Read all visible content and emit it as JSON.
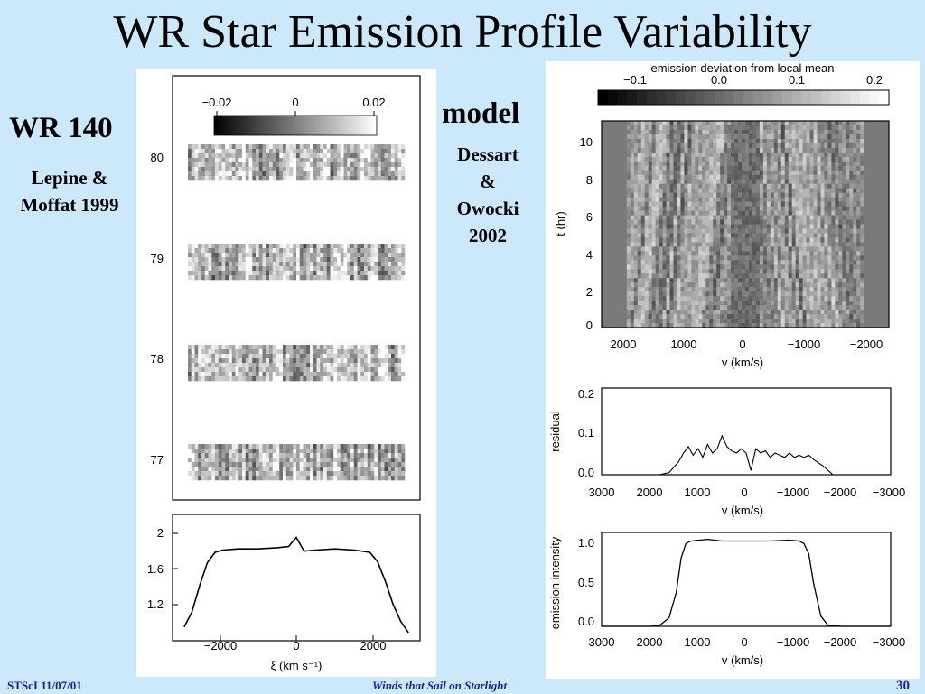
{
  "slide": {
    "title": "WR Star Emission Profile Variability",
    "obs_name": "WR 140",
    "obs_ref_line1": "Lepine &",
    "obs_ref_line2": "Moffat 1999",
    "model_name": "model",
    "model_ref_line1": "Dessart",
    "model_ref_line2": "&",
    "model_ref_line3": "Owocki",
    "model_ref_line4": "2002",
    "footer_left": "STScI 11/07/01",
    "footer_center": "Winds that Sail on Starlight",
    "footer_right": "30"
  },
  "chart_data": [
    {
      "type": "heatmap",
      "colorbar_ticks": [
        "−0.02",
        "0",
        "0.02"
      ],
      "colorbar_range": [
        -0.025,
        0.025
      ],
      "y_ticks": [
        "80",
        "79",
        "78",
        "77"
      ]
    },
    {
      "type": "line",
      "xlabel": "ξ (km s⁻¹)",
      "x_ticks": [
        "−2000",
        "0",
        "2000"
      ],
      "y_ticks": [
        "2",
        "1.6",
        "1.2"
      ],
      "xlim": [
        -3200,
        3200
      ],
      "ylim": [
        1.0,
        2.1
      ],
      "x": [
        -2900,
        -2700,
        -2500,
        -2300,
        -2100,
        -1900,
        -1500,
        -1000,
        -500,
        -200,
        0,
        200,
        500,
        1000,
        1500,
        1900,
        2100,
        2300,
        2500,
        2700,
        2900
      ],
      "y": [
        1.12,
        1.25,
        1.48,
        1.68,
        1.77,
        1.79,
        1.8,
        1.8,
        1.81,
        1.82,
        1.9,
        1.78,
        1.79,
        1.8,
        1.79,
        1.77,
        1.69,
        1.52,
        1.32,
        1.17,
        1.07
      ]
    },
    {
      "type": "heatmap",
      "colorbar_label": "emission  deviation  from  local  mean",
      "colorbar_ticks": [
        "−0.1",
        "0.0",
        "0.1",
        "0.2"
      ],
      "colorbar_range": [
        -0.15,
        0.25
      ],
      "xlabel": "v (km/s)",
      "ylabel": "t (hr)",
      "x_ticks": [
        "2000",
        "1000",
        "0",
        "−1000",
        "−2000"
      ],
      "y_ticks": [
        "10",
        "8",
        "6",
        "4",
        "2",
        "0"
      ],
      "xlim": [
        2800,
        -2800
      ],
      "ylim": [
        0,
        11
      ]
    },
    {
      "type": "line",
      "xlabel": "v (km/s)",
      "ylabel": "residual",
      "x_ticks": [
        "3000",
        "2000",
        "1000",
        "0",
        "−1000",
        "−2000",
        "−3000"
      ],
      "y_ticks": [
        "0.2",
        "0.1",
        "0.0"
      ],
      "xlim": [
        3000,
        -3000
      ],
      "ylim": [
        0,
        0.2
      ],
      "x": [
        2000,
        1800,
        1600,
        1400,
        1300,
        1200,
        1100,
        1000,
        900,
        800,
        700,
        600,
        500,
        400,
        300,
        200,
        100,
        0,
        -100,
        -200,
        -300,
        -400,
        -500,
        -600,
        -700,
        -800,
        -900,
        -1000,
        -1100,
        -1200,
        -1300,
        -1400,
        -1600,
        -1800,
        -2000
      ],
      "y": [
        0.0,
        0.0,
        0.005,
        0.03,
        0.05,
        0.065,
        0.045,
        0.06,
        0.04,
        0.07,
        0.05,
        0.06,
        0.09,
        0.065,
        0.055,
        0.05,
        0.06,
        0.05,
        0.01,
        0.06,
        0.05,
        0.055,
        0.04,
        0.05,
        0.045,
        0.04,
        0.05,
        0.04,
        0.045,
        0.04,
        0.045,
        0.035,
        0.02,
        0.0,
        0.0
      ]
    },
    {
      "type": "line",
      "xlabel": "v (km/s)",
      "ylabel": "emission  intensity",
      "x_ticks": [
        "3000",
        "2000",
        "1000",
        "0",
        "−1000",
        "−2000",
        "−3000"
      ],
      "y_ticks": [
        "1.0",
        "0.5",
        "0.0"
      ],
      "xlim": [
        3000,
        -3000
      ],
      "ylim": [
        0,
        1.1
      ],
      "x": [
        3000,
        2000,
        1800,
        1600,
        1450,
        1350,
        1250,
        1150,
        800,
        500,
        0,
        -500,
        -900,
        -1100,
        -1200,
        -1300,
        -1400,
        -1550,
        -1700,
        -2000,
        -3000
      ],
      "y": [
        0.0,
        0.0,
        0.01,
        0.1,
        0.4,
        0.8,
        0.97,
        1.0,
        1.02,
        1.0,
        1.0,
        1.0,
        1.01,
        1.0,
        0.97,
        0.85,
        0.5,
        0.12,
        0.01,
        0.0,
        0.0
      ]
    }
  ]
}
